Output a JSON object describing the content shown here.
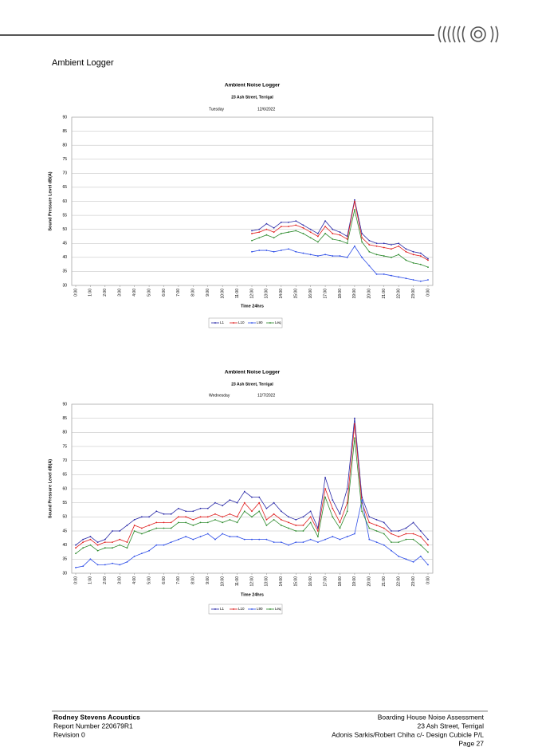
{
  "header": {
    "section_title": "Ambient Logger"
  },
  "chart_data": [
    {
      "type": "line",
      "title": "Ambient Noise Logger",
      "subtitle": "23 Ash Street, Terrigal",
      "day_label": "Tuesday",
      "date_label": "12/6/2022",
      "x_label": "Time 24hrs",
      "y_label": "Sound Pressure Level dB(A)",
      "x": [
        12,
        12.5,
        13,
        13.5,
        14,
        14.5,
        15,
        15.5,
        16,
        16.5,
        17,
        17.5,
        18,
        18.5,
        19,
        19.5,
        20,
        20.5,
        21,
        21.5,
        22,
        22.5,
        23,
        23.5,
        24
      ],
      "xlim": [
        0,
        24
      ],
      "xticks": [
        {
          "value": 0,
          "label": "0:00"
        },
        {
          "value": 1,
          "label": "1:00"
        },
        {
          "value": 2,
          "label": "2:00"
        },
        {
          "value": 3,
          "label": "3:00"
        },
        {
          "value": 4,
          "label": "4:00"
        },
        {
          "value": 5,
          "label": "5:00"
        },
        {
          "value": 6,
          "label": "6:00"
        },
        {
          "value": 7,
          "label": "7:00"
        },
        {
          "value": 8,
          "label": "8:00"
        },
        {
          "value": 9,
          "label": "9:00"
        },
        {
          "value": 10,
          "label": "10:00"
        },
        {
          "value": 11,
          "label": "11:00"
        },
        {
          "value": 12,
          "label": "12:00"
        },
        {
          "value": 13,
          "label": "13:00"
        },
        {
          "value": 14,
          "label": "14:00"
        },
        {
          "value": 15,
          "label": "15:00"
        },
        {
          "value": 16,
          "label": "16:00"
        },
        {
          "value": 17,
          "label": "17:00"
        },
        {
          "value": 18,
          "label": "18:00"
        },
        {
          "value": 19,
          "label": "19:00"
        },
        {
          "value": 20,
          "label": "20:00"
        },
        {
          "value": 21,
          "label": "21:00"
        },
        {
          "value": 22,
          "label": "22:00"
        },
        {
          "value": 23,
          "label": "23:00"
        },
        {
          "value": 24,
          "label": "0:00"
        }
      ],
      "ylim": [
        30,
        90
      ],
      "yticks": [
        30,
        35,
        40,
        45,
        50,
        55,
        60,
        65,
        70,
        75,
        80,
        85,
        90
      ],
      "grid": true,
      "series": [
        {
          "name": "L1",
          "color": "#2a2aa8",
          "values": [
            49.5,
            50,
            52,
            50.5,
            52.5,
            52.5,
            53,
            51.5,
            50,
            48.5,
            53,
            50,
            49,
            47.5,
            60.5,
            48.5,
            46,
            45,
            45,
            44.5,
            45,
            43,
            42,
            41.5,
            39.5
          ]
        },
        {
          "name": "L10",
          "color": "#e02020",
          "values": [
            48.5,
            49,
            50,
            49,
            51,
            51,
            51.5,
            50.5,
            49,
            47.5,
            51,
            48.5,
            48,
            46.5,
            60,
            47,
            44.5,
            44,
            43.5,
            43,
            44,
            42,
            41,
            40.5,
            39
          ]
        },
        {
          "name": "L90",
          "color": "#3050e8",
          "values": [
            42,
            42.5,
            42.5,
            42,
            42.5,
            43,
            42,
            41.5,
            41,
            40.5,
            41,
            40.5,
            40.5,
            40,
            44,
            40,
            37,
            34,
            34,
            33.5,
            33,
            32.5,
            32,
            31.5,
            32
          ]
        },
        {
          "name": "Leq",
          "color": "#2e8b2e",
          "values": [
            46,
            47,
            48,
            47,
            48.5,
            49,
            49.5,
            48.5,
            47,
            45.5,
            48.5,
            46.5,
            46,
            45,
            57,
            45.5,
            42,
            41,
            40.5,
            40,
            41,
            39,
            38,
            37.5,
            36.5
          ]
        }
      ]
    },
    {
      "type": "line",
      "title": "Ambient Noise Logger",
      "subtitle": "23 Ash Street, Terrigal",
      "day_label": "Wednesday",
      "date_label": "12/7/2022",
      "x_label": "Time 24hrs",
      "y_label": "Sound Pressure Level dB(A)",
      "x": [
        0,
        0.5,
        1,
        1.5,
        2,
        2.5,
        3,
        3.5,
        4,
        4.5,
        5,
        5.5,
        6,
        6.5,
        7,
        7.5,
        8,
        8.5,
        9,
        9.5,
        10,
        10.5,
        11,
        11.5,
        12,
        12.5,
        13,
        13.5,
        14,
        14.5,
        15,
        15.5,
        16,
        16.5,
        17,
        17.5,
        18,
        18.5,
        19,
        19.5,
        20,
        20.5,
        21,
        21.5,
        22,
        22.5,
        23,
        23.5,
        24
      ],
      "xlim": [
        0,
        24
      ],
      "xticks": [
        {
          "value": 0,
          "label": "0:00"
        },
        {
          "value": 1,
          "label": "1:00"
        },
        {
          "value": 2,
          "label": "2:00"
        },
        {
          "value": 3,
          "label": "3:00"
        },
        {
          "value": 4,
          "label": "4:00"
        },
        {
          "value": 5,
          "label": "5:00"
        },
        {
          "value": 6,
          "label": "6:00"
        },
        {
          "value": 7,
          "label": "7:00"
        },
        {
          "value": 8,
          "label": "8:00"
        },
        {
          "value": 9,
          "label": "9:00"
        },
        {
          "value": 10,
          "label": "10:00"
        },
        {
          "value": 11,
          "label": "11:00"
        },
        {
          "value": 12,
          "label": "12:00"
        },
        {
          "value": 13,
          "label": "13:00"
        },
        {
          "value": 14,
          "label": "14:00"
        },
        {
          "value": 15,
          "label": "15:00"
        },
        {
          "value": 16,
          "label": "16:00"
        },
        {
          "value": 17,
          "label": "17:00"
        },
        {
          "value": 18,
          "label": "18:00"
        },
        {
          "value": 19,
          "label": "19:00"
        },
        {
          "value": 20,
          "label": "20:00"
        },
        {
          "value": 21,
          "label": "21:00"
        },
        {
          "value": 22,
          "label": "22:00"
        },
        {
          "value": 23,
          "label": "23:00"
        },
        {
          "value": 24,
          "label": "0:00"
        }
      ],
      "ylim": [
        30,
        90
      ],
      "yticks": [
        30,
        35,
        40,
        45,
        50,
        55,
        60,
        65,
        70,
        75,
        80,
        85,
        90
      ],
      "grid": true,
      "series": [
        {
          "name": "L1",
          "color": "#2a2aa8",
          "values": [
            40,
            42,
            43,
            41,
            42,
            45,
            45,
            47,
            49,
            50,
            50,
            52,
            51,
            51,
            53,
            52,
            52,
            53,
            53,
            55,
            54,
            56,
            55,
            59,
            57,
            57,
            53,
            55,
            52,
            50,
            49,
            50,
            52,
            46,
            64,
            56,
            51,
            60,
            85,
            57,
            50,
            49,
            48,
            45,
            45,
            46,
            48,
            45,
            42
          ]
        },
        {
          "name": "L10",
          "color": "#e02020",
          "values": [
            39,
            41,
            42,
            40,
            41,
            41,
            42,
            41,
            47,
            46,
            47,
            48,
            48,
            48,
            50,
            50,
            49,
            50,
            50,
            51,
            50,
            51,
            50,
            55,
            52,
            55,
            49,
            51,
            49,
            48,
            47,
            47,
            50,
            45,
            60,
            53,
            48,
            55,
            83,
            55,
            48,
            47,
            46,
            44,
            43,
            44,
            44,
            43,
            40
          ]
        },
        {
          "name": "L90",
          "color": "#3050e8",
          "values": [
            32,
            32.5,
            35,
            33,
            33,
            33.5,
            33,
            34,
            36,
            37,
            38,
            40,
            40,
            41,
            42,
            43,
            42,
            43,
            44,
            42,
            44,
            43,
            43,
            42,
            42,
            42,
            42,
            41,
            41,
            40,
            41,
            41,
            42,
            41,
            42,
            43,
            42,
            43,
            44,
            56,
            42,
            41,
            40,
            38,
            36,
            35,
            34,
            36,
            33
          ]
        },
        {
          "name": "Leq",
          "color": "#2e8b2e",
          "values": [
            37,
            39,
            40,
            38,
            39,
            39,
            40,
            39,
            45,
            44,
            45,
            46,
            46,
            46,
            48,
            48,
            47,
            48,
            48,
            49,
            48,
            49,
            48,
            52,
            50,
            52,
            47,
            49,
            47,
            46,
            45,
            45,
            48,
            43,
            57,
            50,
            46,
            52,
            78,
            52,
            46,
            45,
            44,
            41,
            41,
            42,
            42,
            40,
            37.5
          ]
        }
      ]
    }
  ],
  "footer": {
    "company": "Rodney Stevens Acoustics",
    "report_number": "Report Number 220679R1",
    "revision": "Revision 0",
    "project": "Boarding House Noise Assessment",
    "address": "23 Ash Street, Terrigal",
    "client": "Adonis Sarkis/Robert Chiha c/- Design Cubicle P/L",
    "page": "Page 27"
  }
}
